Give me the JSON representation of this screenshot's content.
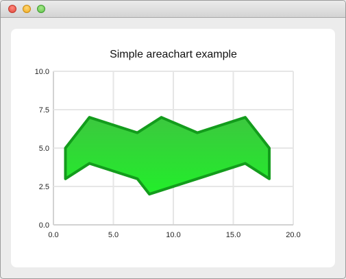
{
  "window": {
    "title": "",
    "controls": {
      "close": "close-icon",
      "minimize": "minimize-icon",
      "zoom": "zoom-icon"
    }
  },
  "chart_data": {
    "type": "area",
    "title": "Simple areachart example",
    "xlabel": "",
    "ylabel": "",
    "xlim": [
      0,
      20
    ],
    "ylim": [
      0,
      10
    ],
    "x_ticks": [
      "0.0",
      "5.0",
      "10.0",
      "15.0",
      "20.0"
    ],
    "y_ticks": [
      "0.0",
      "2.5",
      "5.0",
      "7.5",
      "10.0"
    ],
    "grid": true,
    "upper": [
      [
        1,
        5
      ],
      [
        3,
        7
      ],
      [
        7,
        6
      ],
      [
        9,
        7
      ],
      [
        12,
        6
      ],
      [
        16,
        7
      ],
      [
        18,
        5
      ]
    ],
    "lower": [
      [
        1,
        3
      ],
      [
        3,
        4
      ],
      [
        7,
        3
      ],
      [
        8,
        2
      ],
      [
        12,
        3
      ],
      [
        16,
        4
      ],
      [
        18,
        3
      ]
    ],
    "colors": {
      "fill": "#2fd136",
      "stroke": "#139c1c",
      "grid": "#e6e6e6",
      "axis": "#d2d2d2"
    }
  }
}
